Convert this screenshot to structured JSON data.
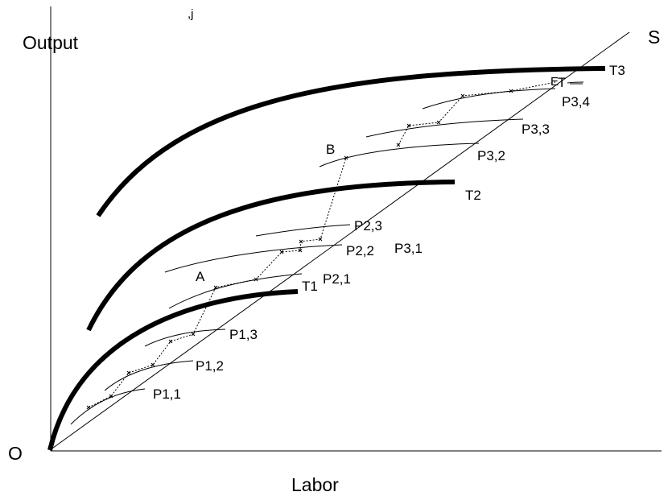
{
  "labels": {
    "output": "Output",
    "labor": "Labor",
    "origin": "O",
    "s_line": "S",
    "t1": "T1",
    "t2": "T2",
    "t3": "T3",
    "point_a": "A",
    "point_b": "B",
    "point_e": "E",
    "point_t": "T",
    "p1_1": "P1,1",
    "p1_2": "P1,2",
    "p1_3": "P1,3",
    "p2_1": "P2,1",
    "p2_2": "P2,2",
    "p2_3": "P2,3",
    "p3_1": "P3,1",
    "p3_2": "P3,2",
    "p3_3": "P3,3",
    "p3_4": "P3,4",
    "header_fragment": ",j"
  }
}
